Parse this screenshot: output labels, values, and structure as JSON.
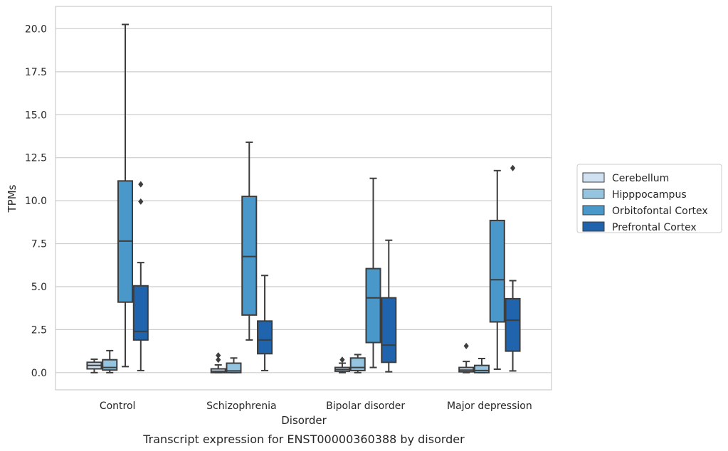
{
  "chart_data": {
    "type": "box",
    "caption": "Transcript expression for ENST00000360388 by disorder",
    "xlabel": "Disorder",
    "ylabel": "TPMs",
    "ylim": [
      -1.0,
      21.3
    ],
    "yticks": [
      0.0,
      2.5,
      5.0,
      7.5,
      10.0,
      12.5,
      15.0,
      17.5,
      20.0
    ],
    "ytick_labels": [
      "0.0",
      "2.5",
      "5.0",
      "7.5",
      "10.0",
      "12.5",
      "15.0",
      "17.5",
      "20.0"
    ],
    "grid": "horizontal",
    "legend_placement": "right",
    "categories": [
      "Control",
      "Schizophrenia",
      "Bipolar disorder",
      "Major depression"
    ],
    "series": [
      {
        "name": "Cerebellum",
        "color": "#d0e1f2",
        "boxes": [
          {
            "whisker_low": 0.0,
            "q1": 0.22,
            "median": 0.42,
            "q3": 0.6,
            "whisker_high": 0.78,
            "outliers": []
          },
          {
            "whisker_low": 0.0,
            "q1": 0.0,
            "median": 0.08,
            "q3": 0.22,
            "whisker_high": 0.45,
            "outliers": [
              0.75,
              1.0
            ]
          },
          {
            "whisker_low": 0.0,
            "q1": 0.08,
            "median": 0.18,
            "q3": 0.3,
            "whisker_high": 0.55,
            "outliers": [
              0.75
            ]
          },
          {
            "whisker_low": 0.0,
            "q1": 0.05,
            "median": 0.15,
            "q3": 0.3,
            "whisker_high": 0.65,
            "outliers": [
              1.55
            ]
          }
        ]
      },
      {
        "name": "Hipppocampus",
        "color": "#94c4df",
        "boxes": [
          {
            "whisker_low": 0.0,
            "q1": 0.15,
            "median": 0.3,
            "q3": 0.75,
            "whisker_high": 1.28,
            "outliers": []
          },
          {
            "whisker_low": 0.0,
            "q1": 0.0,
            "median": 0.1,
            "q3": 0.55,
            "whisker_high": 0.85,
            "outliers": []
          },
          {
            "whisker_low": 0.0,
            "q1": 0.12,
            "median": 0.3,
            "q3": 0.85,
            "whisker_high": 1.05,
            "outliers": []
          },
          {
            "whisker_low": 0.0,
            "q1": 0.0,
            "median": 0.12,
            "q3": 0.42,
            "whisker_high": 0.82,
            "outliers": []
          }
        ]
      },
      {
        "name": "Orbitofontal Cortex",
        "color": "#4a98c9",
        "boxes": [
          {
            "whisker_low": 0.35,
            "q1": 4.1,
            "median": 7.65,
            "q3": 11.15,
            "whisker_high": 20.25,
            "outliers": []
          },
          {
            "whisker_low": 1.9,
            "q1": 3.35,
            "median": 6.75,
            "q3": 10.25,
            "whisker_high": 13.4,
            "outliers": []
          },
          {
            "whisker_low": 0.3,
            "q1": 1.75,
            "median": 4.35,
            "q3": 6.05,
            "whisker_high": 11.3,
            "outliers": []
          },
          {
            "whisker_low": 0.2,
            "q1": 2.95,
            "median": 5.4,
            "q3": 8.85,
            "whisker_high": 11.75,
            "outliers": []
          }
        ]
      },
      {
        "name": "Prefrontal Cortex",
        "color": "#1f64ad",
        "boxes": [
          {
            "whisker_low": 0.12,
            "q1": 1.9,
            "median": 2.4,
            "q3": 5.05,
            "whisker_high": 6.4,
            "outliers": [
              9.95,
              10.95
            ]
          },
          {
            "whisker_low": 0.12,
            "q1": 1.1,
            "median": 1.9,
            "q3": 3.0,
            "whisker_high": 5.65,
            "outliers": []
          },
          {
            "whisker_low": 0.05,
            "q1": 0.6,
            "median": 1.6,
            "q3": 4.35,
            "whisker_high": 7.7,
            "outliers": []
          },
          {
            "whisker_low": 0.1,
            "q1": 1.25,
            "median": 3.05,
            "q3": 4.3,
            "whisker_high": 5.35,
            "outliers": [
              11.9
            ]
          }
        ]
      }
    ]
  }
}
